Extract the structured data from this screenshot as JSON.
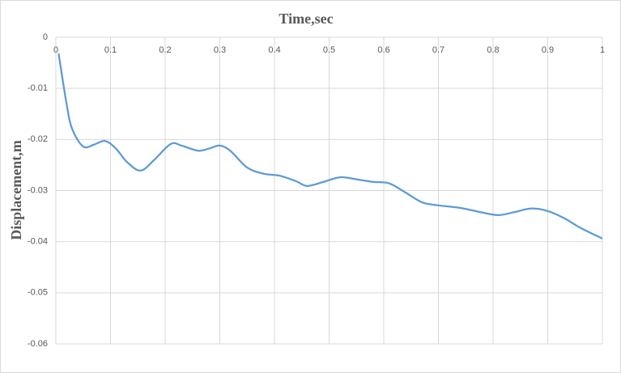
{
  "chart_data": {
    "type": "line",
    "x_label": "Time,sec",
    "y_label": "Displacement,m",
    "x": [
      0.005,
      0.02,
      0.03,
      0.05,
      0.07,
      0.09,
      0.11,
      0.13,
      0.155,
      0.18,
      0.21,
      0.23,
      0.26,
      0.28,
      0.3,
      0.32,
      0.35,
      0.38,
      0.41,
      0.44,
      0.46,
      0.49,
      0.52,
      0.55,
      0.58,
      0.61,
      0.64,
      0.67,
      0.7,
      0.74,
      0.78,
      0.81,
      0.84,
      0.87,
      0.9,
      0.93,
      0.96,
      1.0
    ],
    "series": [
      {
        "color": "#5b9bd5",
        "values": [
          -0.0032,
          -0.0133,
          -0.018,
          -0.0214,
          -0.021,
          -0.0203,
          -0.0218,
          -0.0244,
          -0.0261,
          -0.024,
          -0.0209,
          -0.0212,
          -0.0222,
          -0.0218,
          -0.0212,
          -0.0223,
          -0.0255,
          -0.0267,
          -0.0271,
          -0.0282,
          -0.0291,
          -0.0283,
          -0.0274,
          -0.0278,
          -0.0283,
          -0.0286,
          -0.0304,
          -0.0323,
          -0.0329,
          -0.0334,
          -0.0343,
          -0.0348,
          -0.0342,
          -0.0335,
          -0.034,
          -0.0354,
          -0.0373,
          -0.0394
        ]
      }
    ],
    "xlim": [
      0,
      1
    ],
    "xticks": [
      0,
      0.1,
      0.2,
      0.3,
      0.4,
      0.5,
      0.6,
      0.7,
      0.8,
      0.9,
      1
    ],
    "ylim": [
      -0.06,
      0
    ],
    "yticks": [
      0,
      -0.01,
      -0.02,
      -0.03,
      -0.04,
      -0.05,
      -0.06
    ],
    "grid": true
  }
}
